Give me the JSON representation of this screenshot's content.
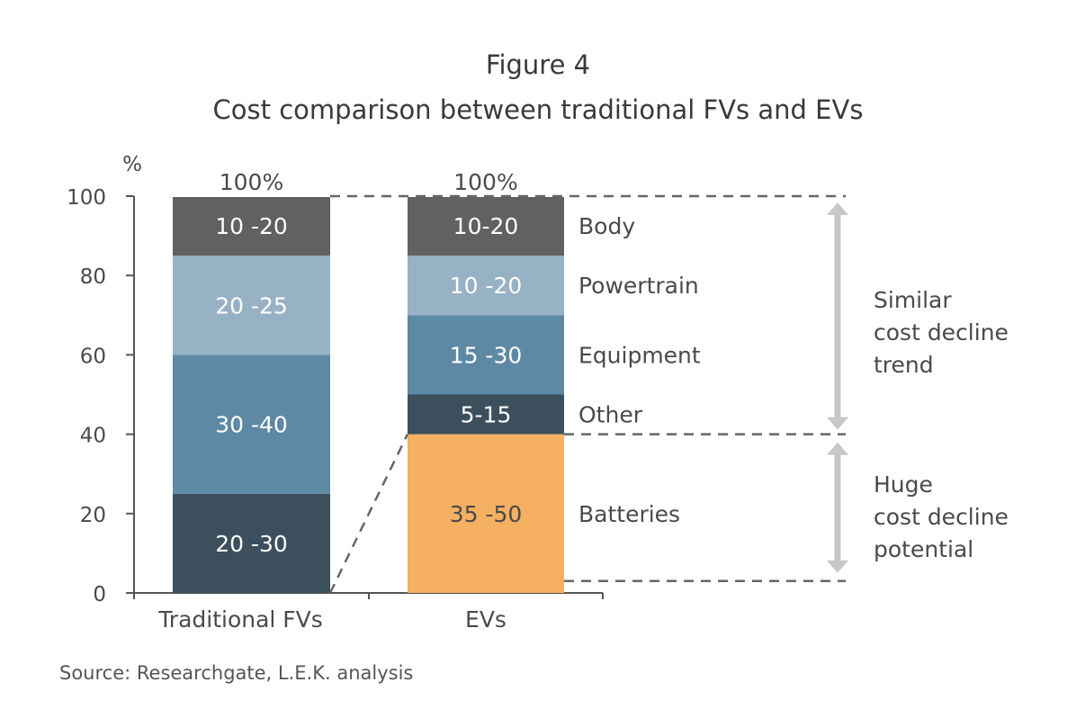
{
  "chart_data": {
    "type": "bar",
    "stacked": true,
    "title": "Figure 4",
    "subtitle": "Cost comparison between traditional FVs and EVs",
    "ylabel": "%",
    "ylim": [
      0,
      100
    ],
    "yticks": [
      "0",
      "20",
      "40",
      "60",
      "80",
      "100"
    ],
    "grid": false,
    "categories": [
      "Traditional FVs",
      "EVs"
    ],
    "totals": [
      "100%",
      "100%"
    ],
    "bars": [
      {
        "category": "Traditional FVs",
        "segments": [
          {
            "from": 0,
            "to": 25,
            "label": "20 -30",
            "color": "#3b4f5c"
          },
          {
            "from": 25,
            "to": 60,
            "label": "30 -40",
            "color": "#5e89a5"
          },
          {
            "from": 60,
            "to": 85,
            "label": "20 -25",
            "color": "#97b1c5"
          },
          {
            "from": 85,
            "to": 100,
            "label": "10 -20",
            "color": "#616161"
          }
        ]
      },
      {
        "category": "EVs",
        "segments": [
          {
            "from": 0,
            "to": 40,
            "label": "35 -50",
            "name": "Batteries",
            "color": "#f5b062"
          },
          {
            "from": 40,
            "to": 50,
            "label": "5-15",
            "name": "Other",
            "color": "#3b4f5c"
          },
          {
            "from": 50,
            "to": 70,
            "label": "15 -30",
            "name": "Equipment",
            "color": "#5e89a5"
          },
          {
            "from": 70,
            "to": 85,
            "label": "10 -20",
            "name": "Powertrain",
            "color": "#97b1c5"
          },
          {
            "from": 85,
            "to": 100,
            "label": "10-20",
            "name": "Body",
            "color": "#616161"
          }
        ]
      }
    ],
    "annotations": [
      {
        "text": [
          "Similar",
          "cost decline",
          "trend"
        ],
        "range": [
          40,
          100
        ]
      },
      {
        "text": [
          "Huge",
          "cost decline",
          "potential"
        ],
        "range": [
          3,
          40
        ]
      }
    ],
    "source": "Source: Researchgate, L.E.K. analysis"
  }
}
